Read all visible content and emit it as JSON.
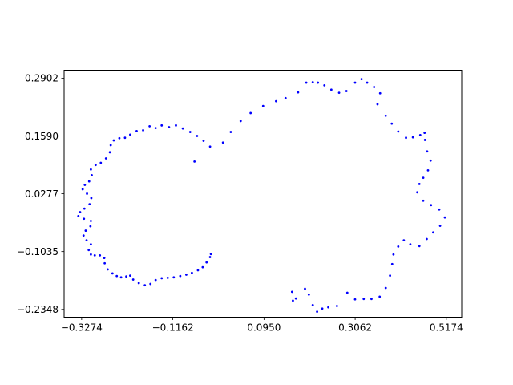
{
  "chart_data": {
    "type": "scatter",
    "title": "",
    "xlabel": "",
    "ylabel": "",
    "xlim": [
      -0.368,
      0.553
    ],
    "ylim": [
      -0.2525,
      0.3083
    ],
    "xticks": [
      -0.3274,
      -0.1162,
      0.095,
      0.3062,
      0.5174
    ],
    "xtick_labels": [
      "−0.3274",
      "−0.1162",
      "0.0950",
      "0.3062",
      "0.5174"
    ],
    "yticks": [
      -0.2348,
      -0.1035,
      0.0277,
      0.159,
      0.2902
    ],
    "ytick_labels": [
      "−0.2348",
      "−0.1035",
      "0.0277",
      "0.1590",
      "0.2902"
    ],
    "grid": false,
    "marker_color": "#0000ff",
    "series": [
      {
        "name": "",
        "points": [
          [
            -0.0299,
            0.1348
          ],
          [
            -0.045,
            0.148
          ],
          [
            -0.06,
            0.159
          ],
          [
            -0.076,
            0.168
          ],
          [
            -0.093,
            0.176
          ],
          [
            -0.109,
            0.183
          ],
          [
            -0.125,
            0.179
          ],
          [
            -0.142,
            0.183
          ],
          [
            -0.156,
            0.177
          ],
          [
            -0.17,
            0.181
          ],
          [
            -0.185,
            0.172
          ],
          [
            -0.2,
            0.17
          ],
          [
            -0.215,
            0.162
          ],
          [
            -0.227,
            0.155
          ],
          [
            -0.24,
            0.154
          ],
          [
            -0.253,
            0.149
          ],
          [
            -0.26,
            0.138
          ],
          [
            -0.262,
            0.122
          ],
          [
            -0.271,
            0.108
          ],
          [
            -0.283,
            0.098
          ],
          [
            -0.295,
            0.093
          ],
          [
            -0.306,
            0.083
          ],
          [
            -0.304,
            0.07
          ],
          [
            -0.31,
            0.056
          ],
          [
            -0.32,
            0.048
          ],
          [
            -0.325,
            0.038
          ],
          [
            -0.315,
            0.028
          ],
          [
            -0.305,
            0.018
          ],
          [
            -0.309,
            0.004
          ],
          [
            -0.321,
            -0.006
          ],
          [
            -0.331,
            -0.014
          ],
          [
            -0.335,
            -0.023
          ],
          [
            -0.322,
            -0.029
          ],
          [
            -0.306,
            -0.034
          ],
          [
            -0.307,
            -0.046
          ],
          [
            -0.318,
            -0.056
          ],
          [
            -0.323,
            -0.067
          ],
          [
            -0.316,
            -0.078
          ],
          [
            -0.306,
            -0.087
          ],
          [
            -0.311,
            -0.1
          ],
          [
            -0.306,
            -0.11
          ],
          [
            -0.297,
            -0.112
          ],
          [
            -0.285,
            -0.112
          ],
          [
            -0.275,
            -0.118
          ],
          [
            -0.274,
            -0.13
          ],
          [
            -0.267,
            -0.144
          ],
          [
            -0.256,
            -0.153
          ],
          [
            -0.246,
            -0.159
          ],
          [
            -0.236,
            -0.162
          ],
          [
            -0.224,
            -0.16
          ],
          [
            -0.215,
            -0.158
          ],
          [
            -0.208,
            -0.167
          ],
          [
            -0.195,
            -0.175
          ],
          [
            -0.181,
            -0.18
          ],
          [
            -0.168,
            -0.177
          ],
          [
            -0.156,
            -0.168
          ],
          [
            -0.142,
            -0.164
          ],
          [
            -0.128,
            -0.163
          ],
          [
            -0.114,
            -0.162
          ],
          [
            -0.099,
            -0.159
          ],
          [
            -0.085,
            -0.156
          ],
          [
            -0.072,
            -0.152
          ],
          [
            -0.058,
            -0.146
          ],
          [
            -0.047,
            -0.139
          ],
          [
            -0.038,
            -0.128
          ],
          [
            -0.03,
            -0.116
          ],
          [
            -0.028,
            -0.109
          ],
          [
            -0.066,
            0.101
          ],
          [
            0.0,
            0.144
          ],
          [
            0.018,
            0.168
          ],
          [
            0.041,
            0.193
          ],
          [
            0.064,
            0.211
          ],
          [
            0.093,
            0.227
          ],
          [
            0.123,
            0.238
          ],
          [
            0.145,
            0.245
          ],
          [
            0.174,
            0.258
          ],
          [
            0.193,
            0.28
          ],
          [
            0.208,
            0.281
          ],
          [
            0.22,
            0.28
          ],
          [
            0.235,
            0.274
          ],
          [
            0.251,
            0.264
          ],
          [
            0.269,
            0.257
          ],
          [
            0.286,
            0.261
          ],
          [
            0.306,
            0.28
          ],
          [
            0.321,
            0.288
          ],
          [
            0.334,
            0.28
          ],
          [
            0.35,
            0.27
          ],
          [
            0.364,
            0.256
          ],
          [
            0.358,
            0.231
          ],
          [
            0.377,
            0.205
          ],
          [
            0.391,
            0.187
          ],
          [
            0.406,
            0.169
          ],
          [
            0.424,
            0.155
          ],
          [
            0.44,
            0.156
          ],
          [
            0.457,
            0.161
          ],
          [
            0.467,
            0.166
          ],
          [
            0.468,
            0.15
          ],
          [
            0.473,
            0.124
          ],
          [
            0.481,
            0.103
          ],
          [
            0.475,
            0.081
          ],
          [
            0.464,
            0.064
          ],
          [
            0.455,
            0.05
          ],
          [
            0.45,
            0.031
          ],
          [
            0.464,
            0.012
          ],
          [
            0.482,
            0.002
          ],
          [
            0.501,
            -0.008
          ],
          [
            0.514,
            -0.026
          ],
          [
            0.503,
            -0.045
          ],
          [
            0.487,
            -0.06
          ],
          [
            0.472,
            -0.075
          ],
          [
            0.455,
            -0.091
          ],
          [
            0.434,
            -0.087
          ],
          [
            0.419,
            -0.078
          ],
          [
            0.406,
            -0.092
          ],
          [
            0.395,
            -0.11
          ],
          [
            0.392,
            -0.132
          ],
          [
            0.387,
            -0.158
          ],
          [
            0.377,
            -0.186
          ],
          [
            0.363,
            -0.206
          ],
          [
            0.344,
            -0.211
          ],
          [
            0.326,
            -0.211
          ],
          [
            0.306,
            -0.212
          ],
          [
            0.288,
            -0.197
          ],
          [
            0.264,
            -0.227
          ],
          [
            0.244,
            -0.23
          ],
          [
            0.23,
            -0.233
          ],
          [
            0.218,
            -0.24
          ],
          [
            0.208,
            -0.225
          ],
          [
            0.199,
            -0.201
          ],
          [
            0.19,
            -0.188
          ],
          [
            0.169,
            -0.21
          ],
          [
            0.16,
            -0.195
          ],
          [
            0.162,
            -0.215
          ]
        ]
      }
    ]
  }
}
